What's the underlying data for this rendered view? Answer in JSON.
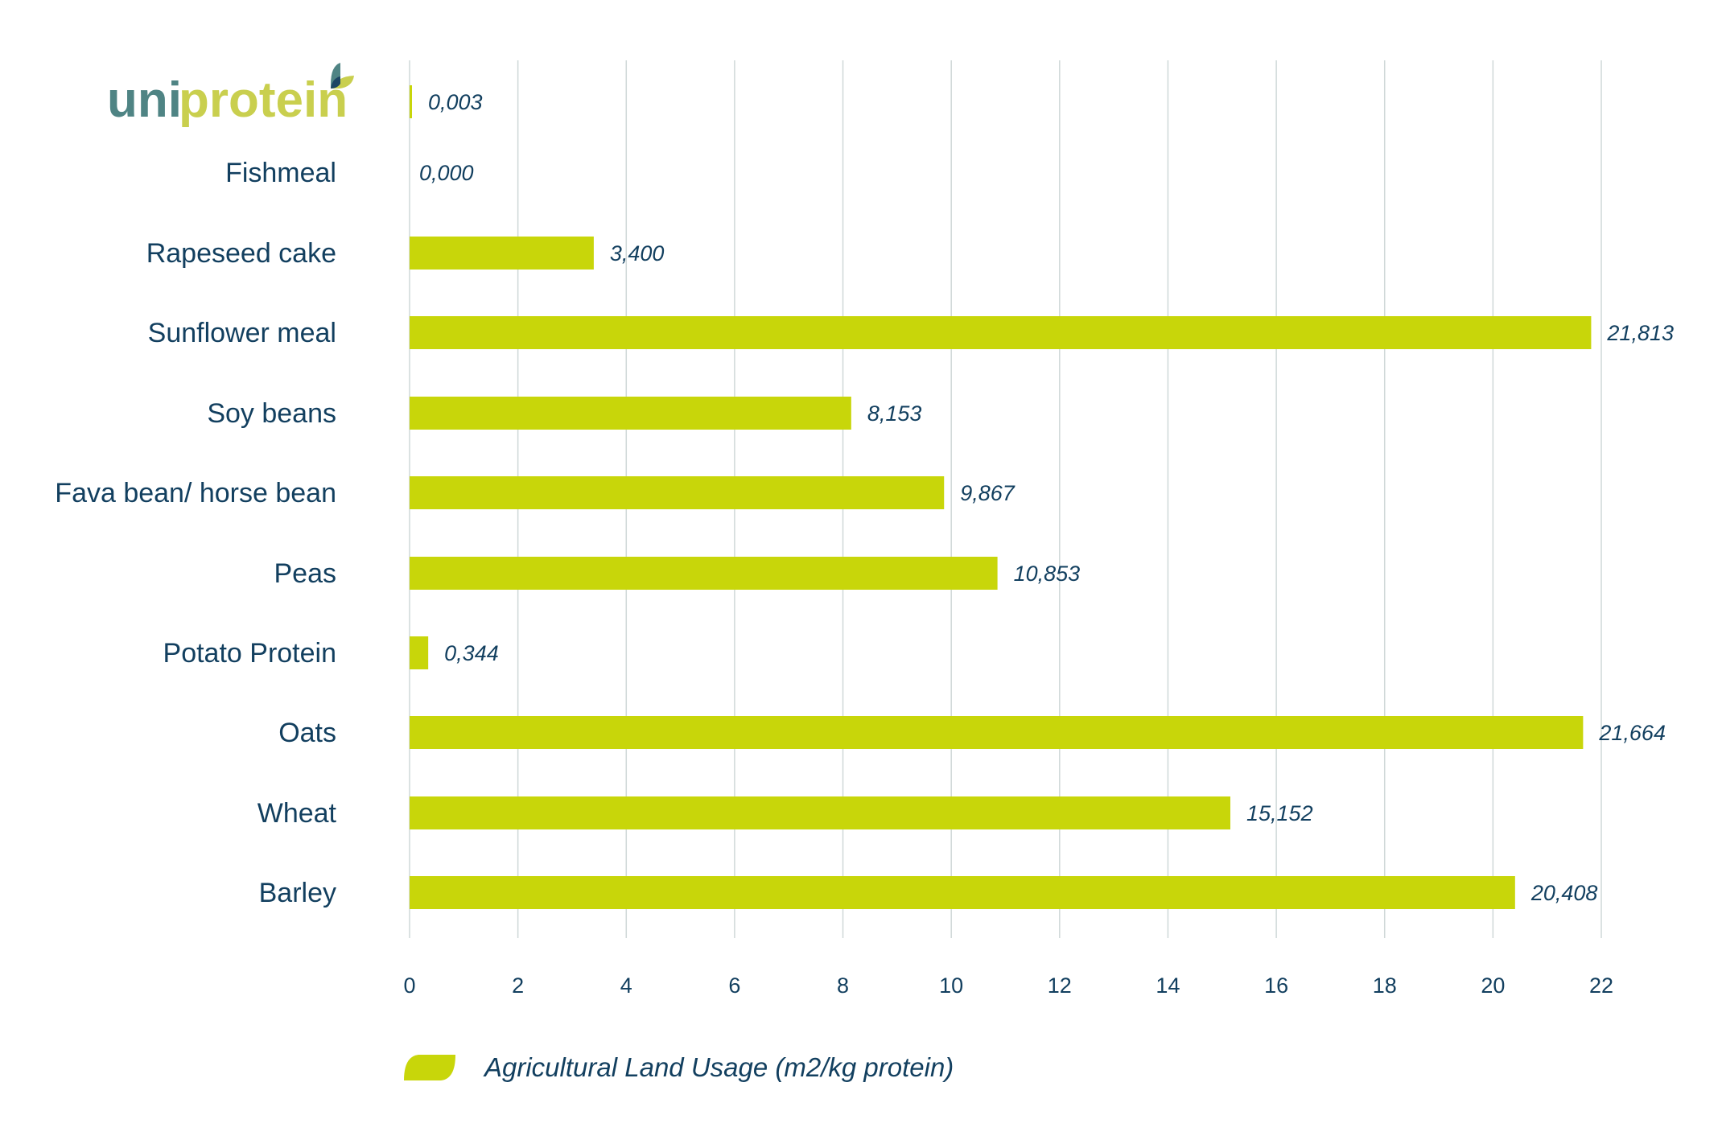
{
  "logo": {
    "text_uni": "uni",
    "text_protein": "protein"
  },
  "colors": {
    "bar": "#c8d60a",
    "text": "#123f5f",
    "grid": "#cfd8d8",
    "logo_teal": "#4f8484",
    "logo_green": "#c9cf4e",
    "logo_navy": "#1d4664"
  },
  "chart_data": {
    "type": "bar",
    "orientation": "horizontal",
    "categories": [
      "",
      "Fishmeal",
      "Rapeseed cake",
      "Sunflower meal",
      "Soy beans",
      "Fava bean/ horse bean",
      "Peas",
      "Potato Protein",
      "Oats",
      "Wheat",
      "Barley"
    ],
    "values": [
      0.003,
      0.0,
      3.4,
      21.813,
      8.153,
      9.867,
      10.853,
      0.344,
      21.664,
      15.152,
      20.408
    ],
    "value_labels": [
      "0,003",
      "0,000",
      "3,400",
      "21,813",
      "8,153",
      "9,867",
      "10,853",
      "0,344",
      "21,664",
      "15,152",
      "20,408"
    ],
    "xlim": [
      0,
      22
    ],
    "xticks": [
      "0",
      "2",
      "4",
      "6",
      "8",
      "10",
      "12",
      "14",
      "16",
      "18",
      "20",
      "22"
    ],
    "grid": true,
    "series_name": "Agricultural Land Usage (m2/kg protein)",
    "legend_position": "bottom-left",
    "title": "",
    "xlabel": "",
    "ylabel": ""
  }
}
